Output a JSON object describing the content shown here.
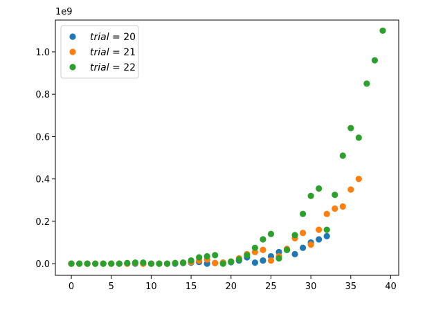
{
  "chart_data": {
    "type": "scatter",
    "title": "",
    "xlabel": "",
    "ylabel": "",
    "x_ticks": [
      0,
      5,
      10,
      15,
      20,
      25,
      30,
      35,
      40
    ],
    "y_ticks": [
      0.0,
      0.2,
      0.4,
      0.6,
      0.8,
      1.0
    ],
    "y_tick_labels": [
      "0.0",
      "0.2",
      "0.4",
      "0.6",
      "0.8",
      "1.0"
    ],
    "x_tick_labels": [
      "0",
      "5",
      "10",
      "15",
      "20",
      "25",
      "30",
      "35",
      "40"
    ],
    "y_offset_label": "1e9",
    "xlim": [
      -2,
      41
    ],
    "ylim": [
      -0.055,
      1.15
    ],
    "grid": false,
    "legend_placement": "top-left",
    "series": [
      {
        "name": "trial = 20",
        "name_var": "trial",
        "name_eq": " = 20",
        "color": "#1f77b4",
        "x": [
          0,
          1,
          2,
          3,
          4,
          5,
          6,
          7,
          8,
          9,
          10,
          11,
          12,
          13,
          14,
          15,
          16,
          17,
          18,
          19,
          20,
          21,
          22,
          23,
          24,
          25,
          26,
          27,
          28,
          29,
          30,
          31,
          32
        ],
        "y": [
          0,
          0,
          0,
          0,
          0,
          0,
          0,
          0,
          0,
          0,
          0,
          0,
          0,
          0,
          0.003,
          0.005,
          0.008,
          0.0,
          0.003,
          0.005,
          0.007,
          0.015,
          0.03,
          0.005,
          0.015,
          0.035,
          0.055,
          0.065,
          0.045,
          0.075,
          0.1,
          0.115,
          0.13
        ]
      },
      {
        "name": "trial = 21",
        "name_var": "trial",
        "name_eq": " = 21",
        "color": "#ff7f0e",
        "x": [
          0,
          1,
          2,
          3,
          4,
          5,
          6,
          7,
          8,
          9,
          10,
          11,
          12,
          13,
          14,
          15,
          16,
          17,
          18,
          19,
          20,
          21,
          22,
          23,
          24,
          25,
          26,
          27,
          28,
          29,
          30,
          31,
          32,
          33,
          34,
          35,
          36
        ],
        "y": [
          0,
          0,
          0,
          0,
          0,
          0,
          0,
          0,
          0.003,
          0,
          0,
          0,
          0,
          0.003,
          0.005,
          0.008,
          0.015,
          0.02,
          0.003,
          0.005,
          0.01,
          0.025,
          0.045,
          0.055,
          0.065,
          0.015,
          0.035,
          0.07,
          0.12,
          0.145,
          0.09,
          0.16,
          0.235,
          0.26,
          0.27,
          0.35,
          0.4
        ]
      },
      {
        "name": "trial = 22",
        "name_var": "trial",
        "name_eq": " = 22",
        "color": "#2ca02c",
        "x": [
          0,
          1,
          2,
          3,
          4,
          5,
          6,
          7,
          8,
          9,
          10,
          11,
          12,
          13,
          14,
          15,
          16,
          17,
          18,
          19,
          20,
          21,
          22,
          23,
          24,
          25,
          26,
          27,
          28,
          29,
          30,
          31,
          32,
          33,
          34,
          35,
          36,
          37,
          38,
          39
        ],
        "y": [
          0,
          0,
          0,
          0,
          0,
          0,
          0,
          0.003,
          0.005,
          0.005,
          0,
          0,
          0,
          0.003,
          0.005,
          0.015,
          0.03,
          0.035,
          0.04,
          0.0,
          0.01,
          0.02,
          0.04,
          0.075,
          0.115,
          0.14,
          0.025,
          0.065,
          0.135,
          0.235,
          0.32,
          0.355,
          0.16,
          0.325,
          0.51,
          0.64,
          0.595,
          0.85,
          0.96,
          1.1
        ]
      }
    ]
  }
}
